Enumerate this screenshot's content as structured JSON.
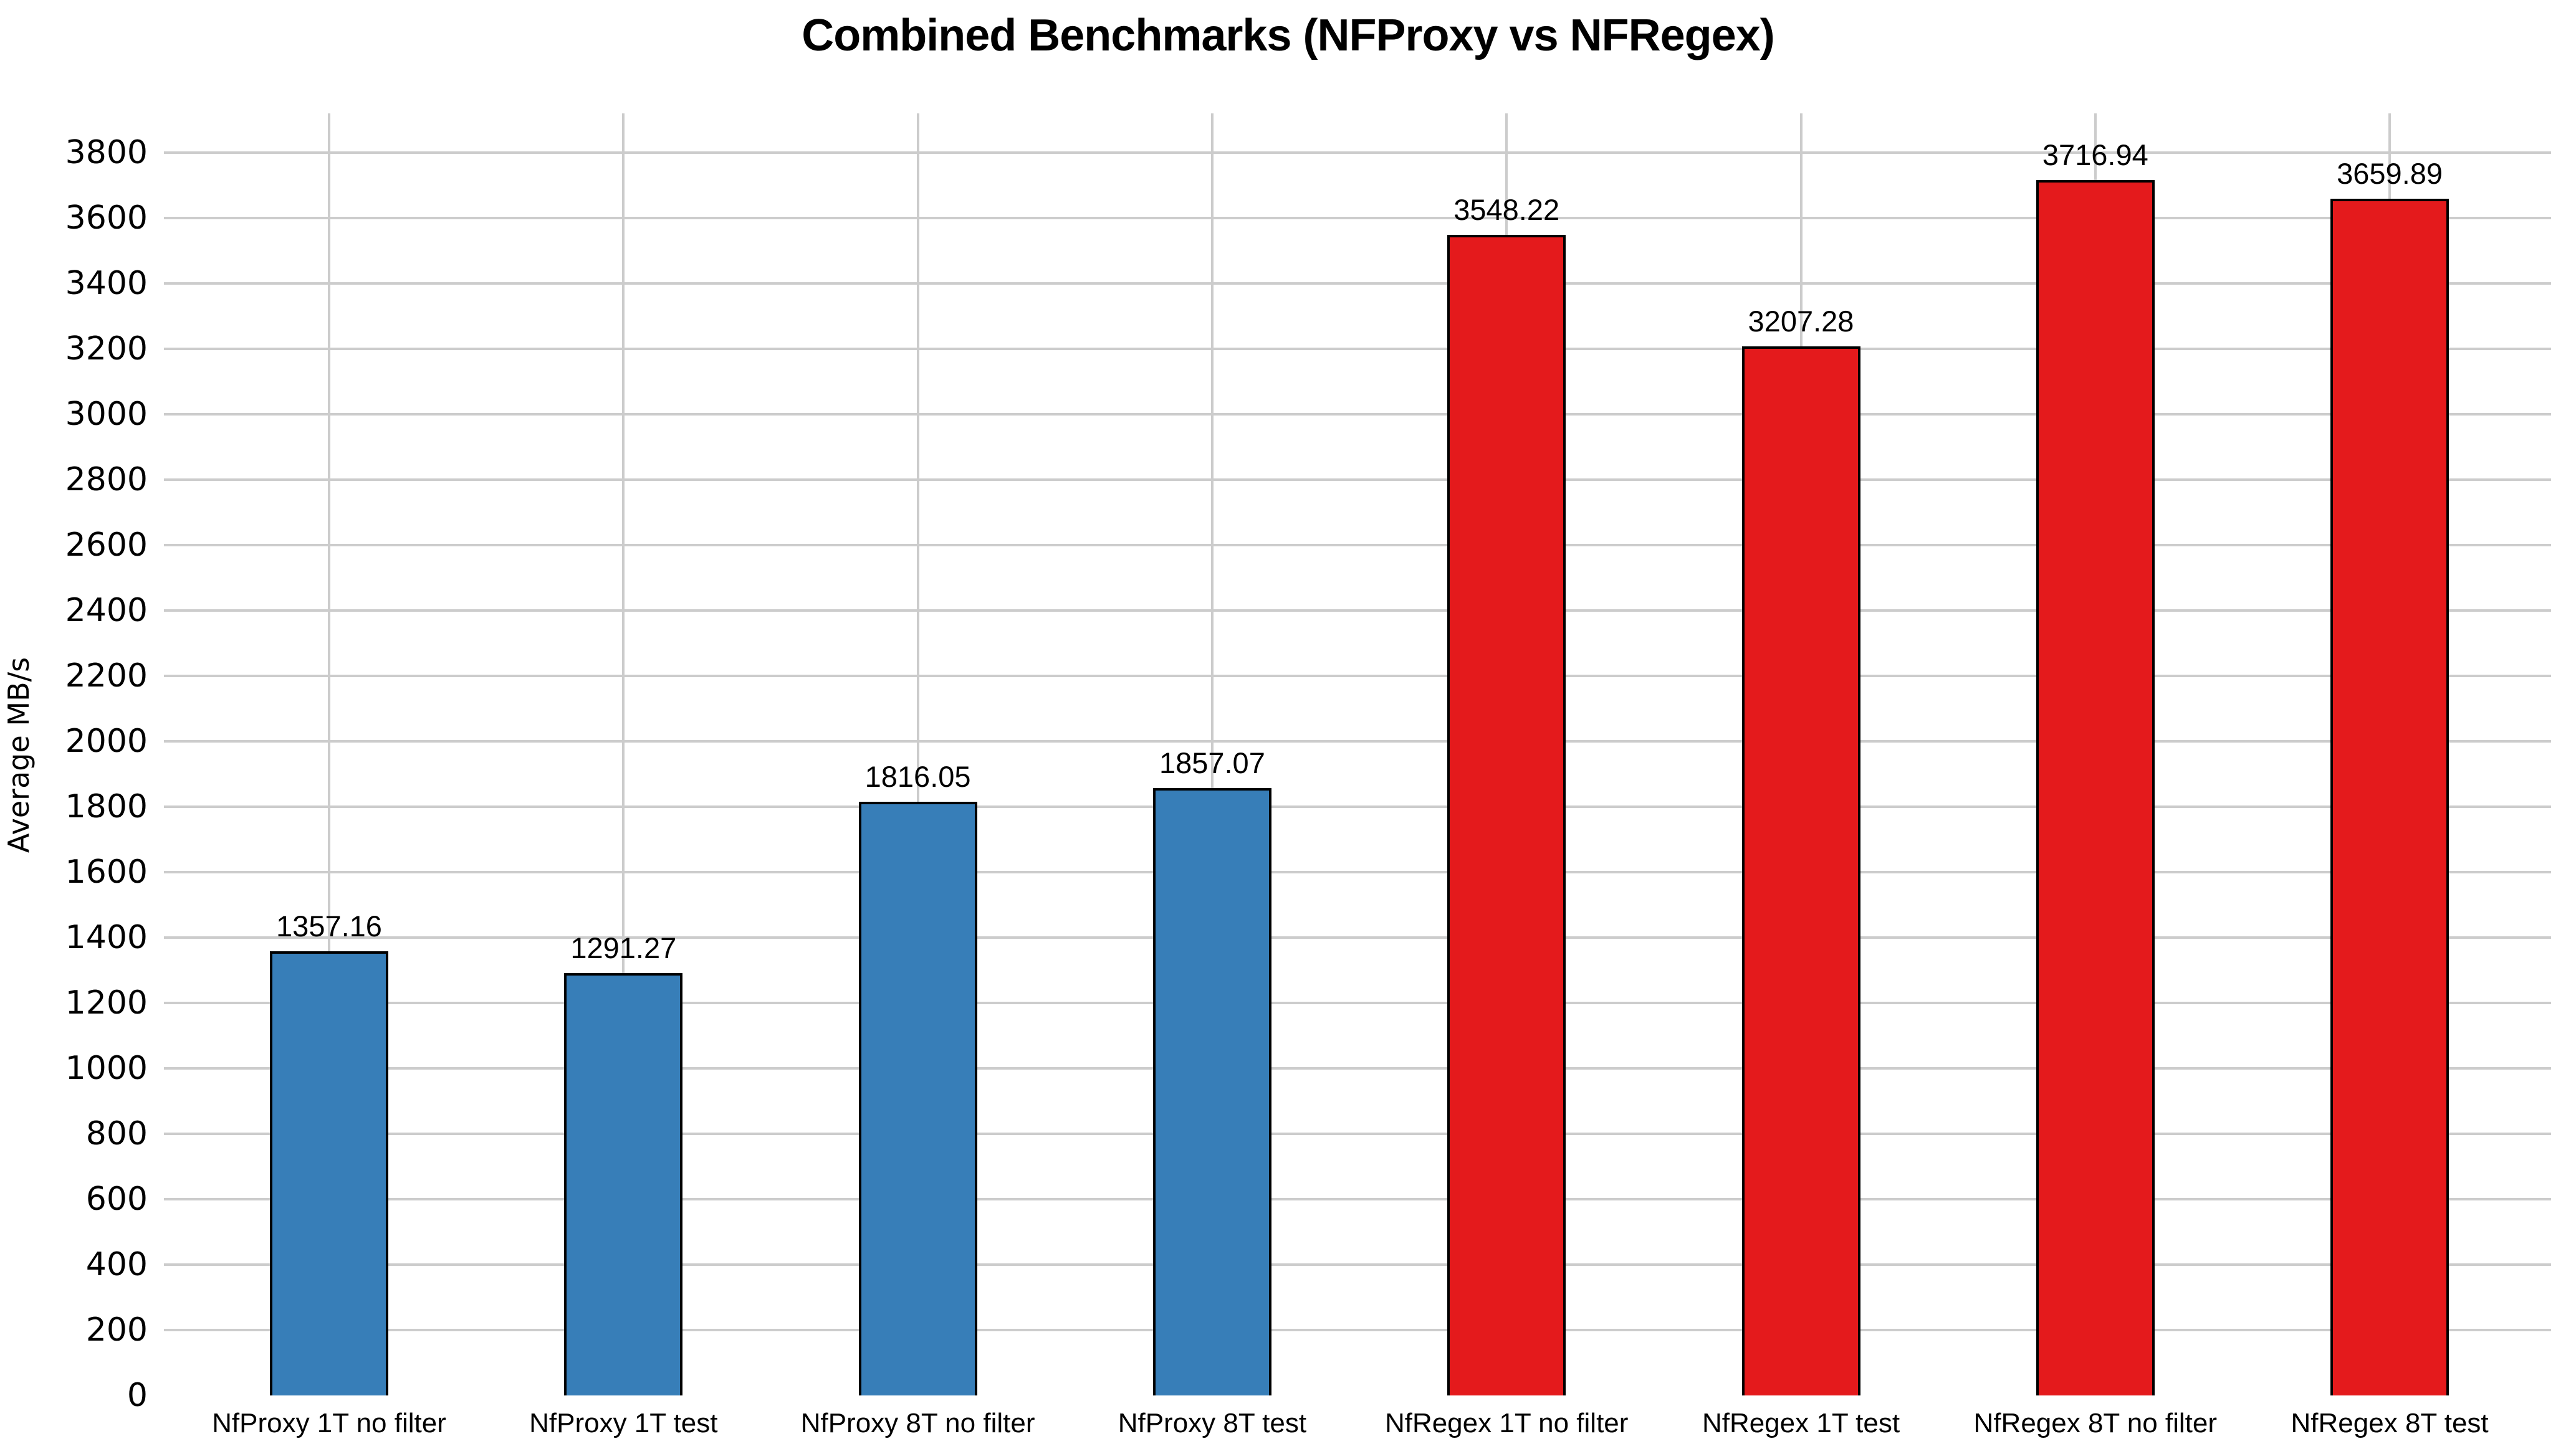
{
  "chart_data": {
    "type": "bar",
    "title": "Combined Benchmarks (NFProxy vs NFRegex)",
    "xlabel": "",
    "ylabel": "Average MB/s",
    "categories": [
      "NfProxy 1T no filter",
      "NfProxy 1T test",
      "NfProxy 8T no filter",
      "NfProxy 8T test",
      "NfRegex 1T no filter",
      "NfRegex 1T test",
      "NfRegex 8T no filter",
      "NfRegex 8T test"
    ],
    "values": [
      1357.16,
      1291.27,
      1816.05,
      1857.07,
      3548.22,
      3207.28,
      3716.94,
      3659.89
    ],
    "value_labels": [
      "1357.16",
      "1291.27",
      "1816.05",
      "1857.07",
      "3548.22",
      "3207.28",
      "3716.94",
      "3659.89"
    ],
    "bar_colors": [
      "#377EB8",
      "#377EB8",
      "#377EB8",
      "#377EB8",
      "#E41A1C",
      "#E41A1C",
      "#E41A1C",
      "#E41A1C"
    ],
    "y_ticks": [
      0,
      200,
      400,
      600,
      800,
      1000,
      1200,
      1400,
      1600,
      1800,
      2000,
      2200,
      2400,
      2600,
      2800,
      3000,
      3200,
      3400,
      3600,
      3800
    ],
    "ylim": [
      0,
      3920
    ],
    "grid": true,
    "legend": "none",
    "colors": {
      "nfproxy_bar": "#377EB8",
      "nfregex_bar": "#E41A1C",
      "bar_border": "#000000",
      "gridline": "#cccccc",
      "text": "#000000",
      "background": "#ffffff"
    }
  }
}
